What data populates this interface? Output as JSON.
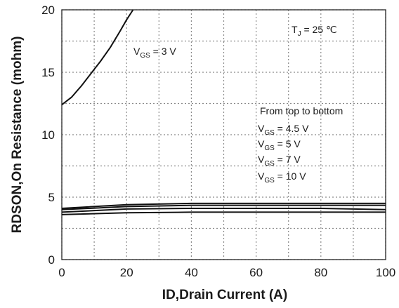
{
  "chart_data": {
    "type": "line",
    "xlabel": "ID,Drain Current (A)",
    "ylabel": "RDSON,On Resistance (mohm)",
    "xlim": [
      0,
      100
    ],
    "ylim": [
      0,
      20
    ],
    "x_ticks": [
      "0",
      "20",
      "40",
      "60",
      "80",
      "100"
    ],
    "y_ticks": [
      "0",
      "5",
      "10",
      "15",
      "20"
    ],
    "grid": true,
    "annotations": {
      "temperature": {
        "main": "T",
        "sub": "J",
        "rest": " = 25 ℃"
      },
      "order_note": "From top to bottom"
    },
    "series": [
      {
        "label_main": "V",
        "label_sub": "GS",
        "label_rest": " = 3 V",
        "x": [
          0,
          3,
          6,
          9,
          12,
          15,
          18,
          20,
          22
        ],
        "y": [
          12.4,
          13.0,
          13.9,
          14.9,
          15.9,
          17.0,
          18.3,
          19.2,
          20.0
        ]
      },
      {
        "label_main": "V",
        "label_sub": "GS",
        "label_rest": " = 4.5 V",
        "x": [
          0,
          20,
          40,
          60,
          80,
          100
        ],
        "y": [
          4.1,
          4.4,
          4.5,
          4.5,
          4.5,
          4.5
        ]
      },
      {
        "label_main": "V",
        "label_sub": "GS",
        "label_rest": " = 5 V",
        "x": [
          0,
          20,
          40,
          60,
          80,
          100
        ],
        "y": [
          4.0,
          4.25,
          4.35,
          4.35,
          4.35,
          4.35
        ]
      },
      {
        "label_main": "V",
        "label_sub": "GS",
        "label_rest": " = 7 V",
        "x": [
          0,
          20,
          40,
          60,
          80,
          100
        ],
        "y": [
          3.8,
          4.05,
          4.1,
          4.1,
          4.1,
          4.0
        ]
      },
      {
        "label_main": "V",
        "label_sub": "GS",
        "label_rest": " = 10 V",
        "x": [
          0,
          20,
          40,
          60,
          80,
          100
        ],
        "y": [
          3.6,
          3.75,
          3.8,
          3.8,
          3.8,
          3.8
        ]
      }
    ]
  }
}
